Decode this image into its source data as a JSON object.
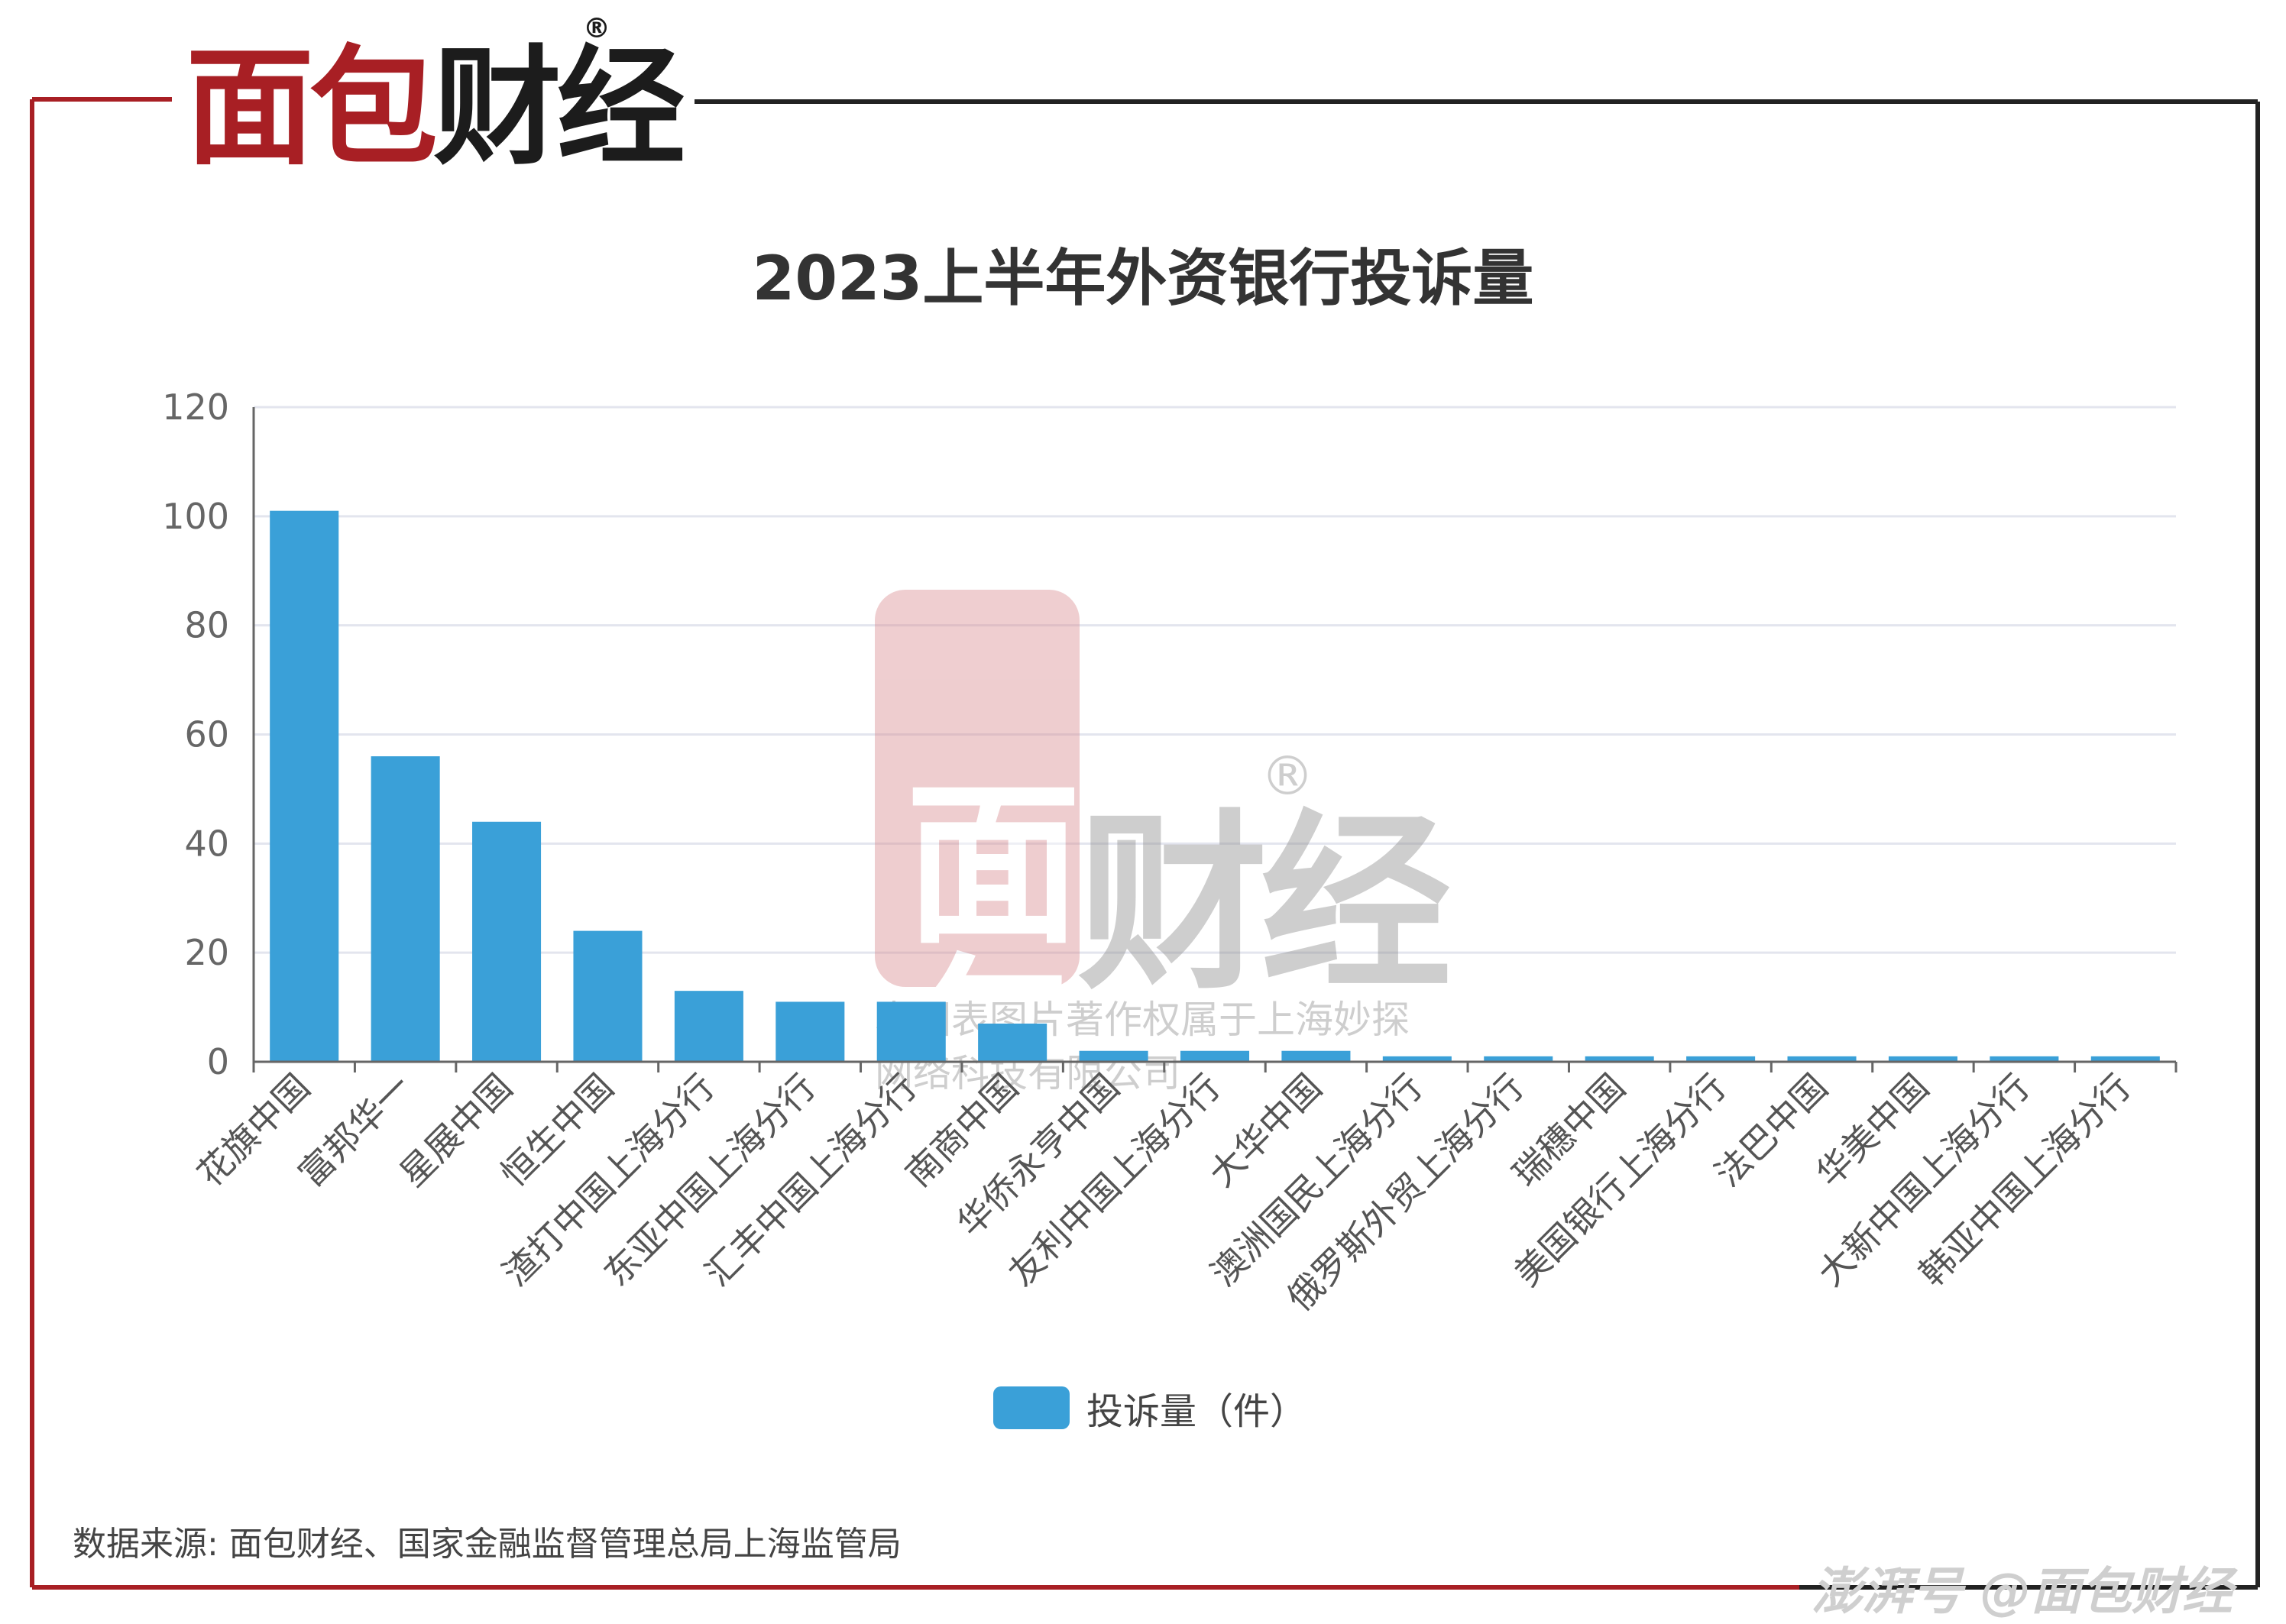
{
  "brand": {
    "logo_red": "面包",
    "logo_dark": "财经",
    "registered": "®"
  },
  "watermark": {
    "logo_red": "面包",
    "logo_dark": "财经",
    "registered": "®",
    "line1": "本图表图片著作权属于上海妙探",
    "line2": "网络科技有限公司"
  },
  "footer": {
    "source": "数据来源: 面包财经、国家金融监督管理总局上海监管局",
    "credit": "澎湃号 @面包财经"
  },
  "colors": {
    "bar": "#3aa0d8",
    "frame_red": "#a81f24",
    "frame_dark": "#222222"
  },
  "chart_data": {
    "type": "bar",
    "title": "2023上半年外资银行投诉量",
    "xlabel": "",
    "ylabel": "",
    "ylim": [
      0,
      120
    ],
    "yticks": [
      0,
      20,
      40,
      60,
      80,
      100,
      120
    ],
    "grid": true,
    "legend_position": "bottom",
    "categories": [
      "花旗中国",
      "富邦华一",
      "星展中国",
      "恒生中国",
      "渣打中国上海分行",
      "东亚中国上海分行",
      "汇丰中国上海分行",
      "南商中国",
      "华侨永亨中国",
      "友利中国上海分行",
      "大华中国",
      "澳洲国民上海分行",
      "俄罗斯外贸上海分行",
      "瑞穗中国",
      "美国银行上海分行",
      "法巴中国",
      "华美中国",
      "大新中国上海分行",
      "韩亚中国上海分行"
    ],
    "series": [
      {
        "name": "投诉量（件）",
        "values": [
          101,
          56,
          44,
          24,
          13,
          11,
          11,
          7,
          2,
          2,
          2,
          1,
          1,
          1,
          1,
          1,
          1,
          1,
          1
        ]
      }
    ]
  }
}
